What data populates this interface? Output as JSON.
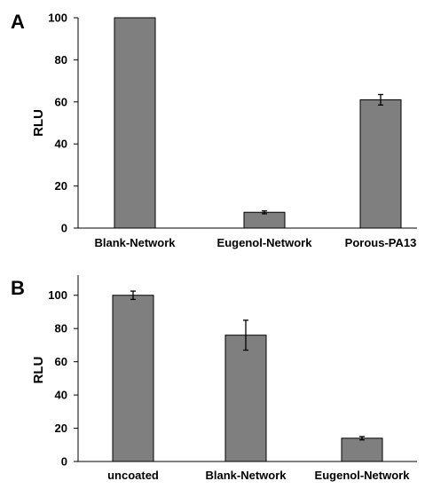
{
  "chart_data": [
    {
      "panel": "A",
      "type": "bar",
      "categories": [
        "Blank-Network",
        "Eugenol-Network",
        "Porous-PA13"
      ],
      "values": [
        100,
        7.5,
        61
      ],
      "errors": [
        0,
        0.7,
        2.5
      ],
      "xlabel": "",
      "ylabel": "RLU",
      "ylim": [
        0,
        100
      ],
      "yticks": [
        "0",
        "20",
        "40",
        "60",
        "80",
        "100"
      ],
      "bar_color": "#7f7f7f",
      "grid": false
    },
    {
      "panel": "B",
      "type": "bar",
      "categories": [
        "uncoated",
        "Blank-Network",
        "Eugenol-Network"
      ],
      "values": [
        100,
        76,
        14
      ],
      "errors": [
        2.5,
        9,
        1
      ],
      "xlabel": "",
      "ylabel": "RLU",
      "ylim": [
        0,
        110
      ],
      "yticks": [
        "0",
        "20",
        "40",
        "60",
        "80",
        "100"
      ],
      "bar_color": "#7f7f7f",
      "grid": false
    }
  ]
}
